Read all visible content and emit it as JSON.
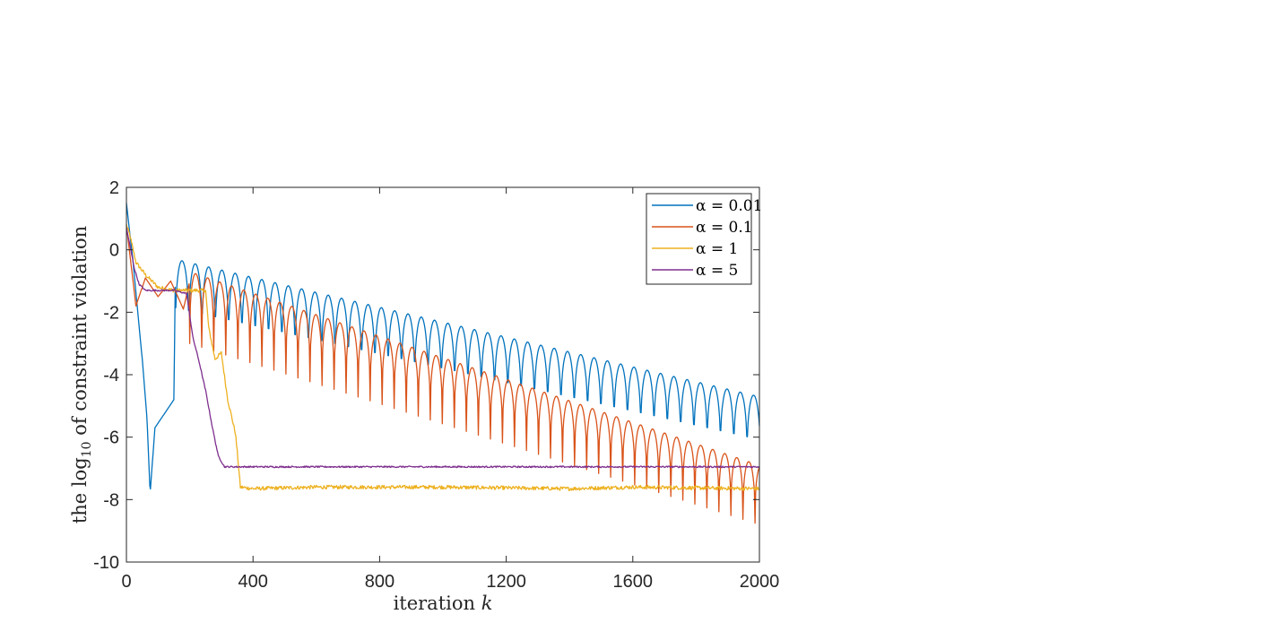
{
  "chart_data": {
    "type": "line",
    "title": "",
    "xlabel": "iteration k",
    "ylabel": "the log10 of constraint violation",
    "xlabel_parts": {
      "text": "iteration ",
      "math": "k"
    },
    "ylabel_parts": {
      "pre": "the log",
      "sub": "10",
      "post": " of constraint violation"
    },
    "xlim": [
      0,
      2000
    ],
    "ylim": [
      -10,
      2
    ],
    "xticks": [
      0,
      400,
      800,
      1200,
      1600,
      2000
    ],
    "yticks": [
      -10,
      -8,
      -6,
      -4,
      -2,
      0,
      2
    ],
    "xtick_labels": [
      "0",
      "400",
      "800",
      "1200",
      "1600",
      "2000"
    ],
    "ytick_labels": [
      "-10",
      "-8",
      "-6",
      "-4",
      "-2",
      "0",
      "2"
    ],
    "grid": false,
    "legend_position": "top-right",
    "series": [
      {
        "name": "α = 0.01",
        "legend_label": "α = 0.01",
        "color": "#0072BD",
        "envelope_points": [
          [
            0,
            1.5
          ],
          [
            20,
            -0.3
          ],
          [
            50,
            -3.5
          ],
          [
            65,
            -5.4
          ],
          [
            75,
            -7.8
          ],
          [
            90,
            -5.7
          ],
          [
            150,
            -4.8
          ],
          [
            155,
            -0.3
          ]
        ],
        "bounce_start": 155,
        "bounce_period": 42,
        "bounce_peak_start": -0.3,
        "bounce_peak_end": -4.7,
        "bounce_trough_start": -2.9,
        "bounce_trough_end": -7.0
      },
      {
        "name": "α = 0.1",
        "legend_label": "α = 0.1",
        "color": "#D95319",
        "envelope_points": [
          [
            0,
            0.8
          ],
          [
            15,
            -0.5
          ],
          [
            30,
            -1.8
          ],
          [
            60,
            -0.9
          ],
          [
            100,
            -1.5
          ],
          [
            140,
            -1.0
          ],
          [
            180,
            -1.9
          ],
          [
            200,
            -1.0
          ]
        ],
        "bounce_start": 200,
        "bounce_period": 38,
        "bounce_peak_start": -0.7,
        "bounce_peak_end": -6.9,
        "bounce_trough_start": -3.0,
        "bounce_trough_end": -8.8
      },
      {
        "name": "α = 1",
        "legend_label": "α = 1",
        "color": "#EDB120",
        "points": [
          [
            0,
            0.8
          ],
          [
            10,
            0.5
          ],
          [
            30,
            -0.4
          ],
          [
            60,
            -0.8
          ],
          [
            100,
            -1.2
          ],
          [
            150,
            -1.3
          ],
          [
            200,
            -1.3
          ],
          [
            250,
            -1.3
          ],
          [
            260,
            -2.5
          ],
          [
            280,
            -3.5
          ],
          [
            300,
            -3.3
          ],
          [
            320,
            -4.8
          ],
          [
            345,
            -5.9
          ],
          [
            360,
            -7.6
          ],
          [
            400,
            -7.65
          ],
          [
            600,
            -7.6
          ],
          [
            1000,
            -7.6
          ],
          [
            1400,
            -7.65
          ],
          [
            1600,
            -7.6
          ],
          [
            2000,
            -7.65
          ]
        ],
        "noise": 0.06
      },
      {
        "name": "α = 5",
        "legend_label": "α = 5",
        "color": "#7E2F8E",
        "points": [
          [
            0,
            0.7
          ],
          [
            10,
            0.2
          ],
          [
            25,
            -0.6
          ],
          [
            40,
            -1.1
          ],
          [
            60,
            -1.3
          ],
          [
            100,
            -1.3
          ],
          [
            150,
            -1.3
          ],
          [
            190,
            -1.4
          ],
          [
            210,
            -2.8
          ],
          [
            230,
            -3.6
          ],
          [
            250,
            -4.5
          ],
          [
            270,
            -5.6
          ],
          [
            290,
            -6.6
          ],
          [
            310,
            -6.95
          ],
          [
            600,
            -6.95
          ],
          [
            1000,
            -6.95
          ],
          [
            1400,
            -6.95
          ],
          [
            2000,
            -6.95
          ]
        ],
        "noise": 0.025
      }
    ]
  }
}
